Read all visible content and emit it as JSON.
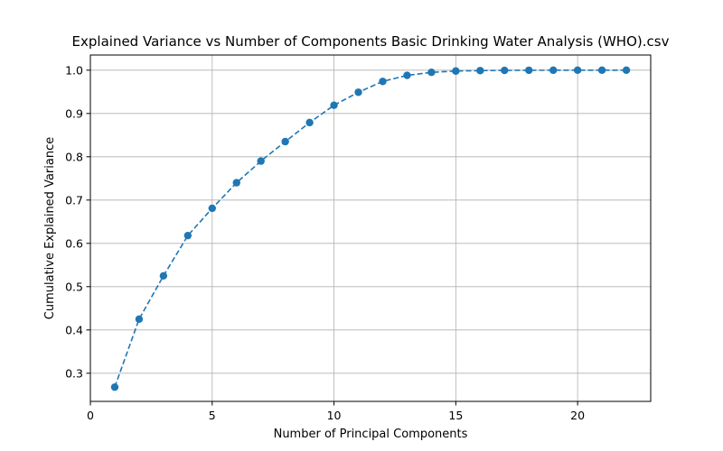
{
  "chart_data": {
    "type": "line",
    "title": "Explained Variance vs Number of Components Basic Drinking Water Analysis (WHO).csv",
    "xlabel": "Number of Principal Components",
    "ylabel": "Cumulative Explained Variance",
    "xlim": [
      0,
      23
    ],
    "ylim": [
      0.235,
      1.035
    ],
    "xticks": [
      0,
      5,
      10,
      15,
      20
    ],
    "yticks": [
      0.3,
      0.4,
      0.5,
      0.6,
      0.7,
      0.8,
      0.9,
      1.0
    ],
    "xtick_labels": [
      "0",
      "5",
      "10",
      "15",
      "20"
    ],
    "ytick_labels": [
      "0.3",
      "0.4",
      "0.5",
      "0.6",
      "0.7",
      "0.8",
      "0.9",
      "1.0"
    ],
    "grid": true,
    "line_style": "dashed",
    "marker": "circle",
    "series": [
      {
        "x": [
          1,
          2,
          3,
          4,
          5,
          6,
          7,
          8,
          9,
          10,
          11,
          12,
          13,
          14,
          15,
          16,
          17,
          18,
          19,
          20,
          21,
          22
        ],
        "values": [
          0.268,
          0.425,
          0.525,
          0.618,
          0.681,
          0.74,
          0.79,
          0.835,
          0.879,
          0.919,
          0.949,
          0.974,
          0.988,
          0.995,
          0.998,
          0.999,
          0.9995,
          0.9998,
          0.9999,
          1.0,
          1.0,
          1.0
        ]
      }
    ],
    "colors": {
      "series": "#1f77b4",
      "grid": "#b0b0b0",
      "axis": "#000000"
    }
  }
}
